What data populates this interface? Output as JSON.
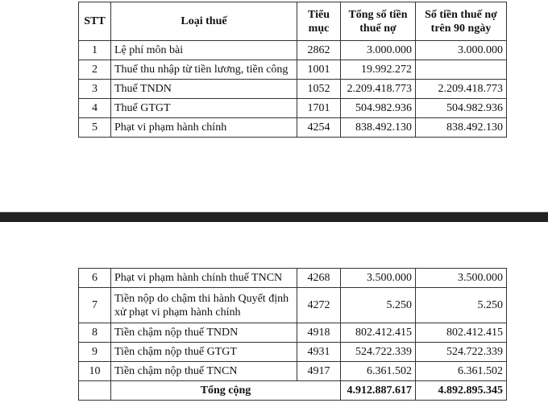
{
  "header": {
    "stt": "STT",
    "type": "Loại thuế",
    "code": "Tiểu mục",
    "total": "Tổng số tiền thuế nợ",
    "over90": "Số tiền thuế nợ trên 90 ngày"
  },
  "page1_rows": [
    {
      "stt": "1",
      "type": "Lệ phí môn bài",
      "code": "2862",
      "total": "3.000.000",
      "over90": "3.000.000"
    },
    {
      "stt": "2",
      "type": "Thuế thu nhập từ tiền lương, tiền công",
      "code": "1001",
      "total": "19.992.272",
      "over90": ""
    },
    {
      "stt": "3",
      "type": "Thuế TNDN",
      "code": "1052",
      "total": "2.209.418.773",
      "over90": "2.209.418.773"
    },
    {
      "stt": "4",
      "type": "Thuế GTGT",
      "code": "1701",
      "total": "504.982.936",
      "over90": "504.982.936"
    },
    {
      "stt": "5",
      "type": "Phạt vi phạm hành chính",
      "code": "4254",
      "total": "838.492.130",
      "over90": "838.492.130"
    }
  ],
  "page2_rows": [
    {
      "stt": "6",
      "type": "Phạt vi phạm hành chính thuế TNCN",
      "code": "4268",
      "total": "3.500.000",
      "over90": "3.500.000"
    },
    {
      "stt": "7",
      "type": "Tiền nộp do chậm thi hành Quyết định xử phạt vi phạm hành chính",
      "code": "4272",
      "total": "5.250",
      "over90": "5.250"
    },
    {
      "stt": "8",
      "type": "Tiền chậm nộp thuế TNDN",
      "code": "4918",
      "total": "802.412.415",
      "over90": "802.412.415"
    },
    {
      "stt": "9",
      "type": "Tiền chậm nộp thuế GTGT",
      "code": "4931",
      "total": "524.722.339",
      "over90": "524.722.339"
    },
    {
      "stt": "10",
      "type": "Tiền chậm nộp thuế TNCN",
      "code": "4917",
      "total": "6.361.502",
      "over90": "6.361.502"
    }
  ],
  "totals": {
    "label": "Tổng cộng",
    "total": "4.912.887.617",
    "over90": "4.892.895.345"
  }
}
